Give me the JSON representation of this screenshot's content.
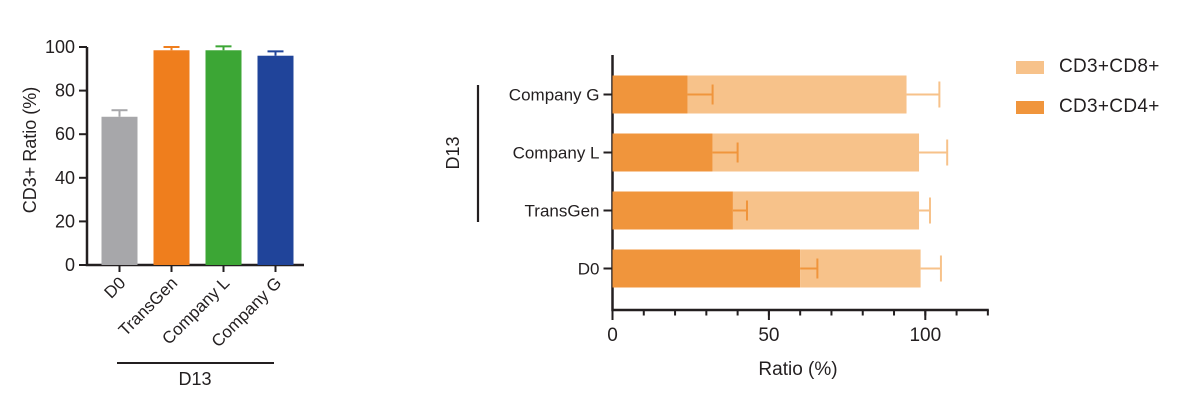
{
  "figure": {
    "background": "#ffffff",
    "ink_color": "#231f20"
  },
  "legend": {
    "items": [
      {
        "label": "CD3+CD8+",
        "color": "#f7c28a"
      },
      {
        "label": "CD3+CD4+",
        "color": "#f0953c"
      }
    ]
  },
  "chart_data": [
    {
      "type": "bar",
      "title": "",
      "xlabel": "",
      "ylabel": "CD3+ Ratio (%)",
      "categories": [
        "D0",
        "TransGen",
        "Company L",
        "Company G"
      ],
      "values": [
        68,
        98.5,
        98.5,
        96
      ],
      "errors": [
        3,
        1.5,
        1.8,
        2
      ],
      "bar_colors": [
        "#a7a7aa",
        "#ef7e1d",
        "#3ca635",
        "#20449a"
      ],
      "ylim": [
        0,
        100
      ],
      "yticks": [
        0,
        20,
        40,
        60,
        80,
        100
      ],
      "grid": false,
      "legend_position": "none",
      "xtick_label_rotation_deg": 45,
      "group_label": "D13",
      "group_members": [
        "TransGen",
        "Company L",
        "Company G"
      ]
    },
    {
      "type": "bar",
      "orientation": "horizontal",
      "stacked": true,
      "title": "",
      "xlabel": "Ratio (%)",
      "ylabel": "",
      "categories": [
        "Company G",
        "Company L",
        "TransGen",
        "D0"
      ],
      "series": [
        {
          "name": "CD3+CD4+",
          "color": "#f0953c",
          "values": [
            24,
            32,
            38.5,
            60
          ],
          "errors": [
            8,
            8,
            4.5,
            5.5
          ]
        },
        {
          "name": "CD3+CD8+",
          "color": "#f7c28a",
          "values": [
            70,
            66,
            59.5,
            38.5
          ],
          "errors": [
            10.5,
            9,
            3.5,
            6.5
          ]
        }
      ],
      "stack_totals": [
        94,
        98,
        98,
        98.5
      ],
      "xlim": [
        0,
        120
      ],
      "xticks": [
        0,
        50,
        100
      ],
      "xtick_minor_step": 10,
      "grid": false,
      "legend_position": "right",
      "legend_order": [
        "CD3+CD8+",
        "CD3+CD4+"
      ],
      "group_label": "D13",
      "group_members": [
        "Company G",
        "Company L",
        "TransGen"
      ]
    }
  ]
}
